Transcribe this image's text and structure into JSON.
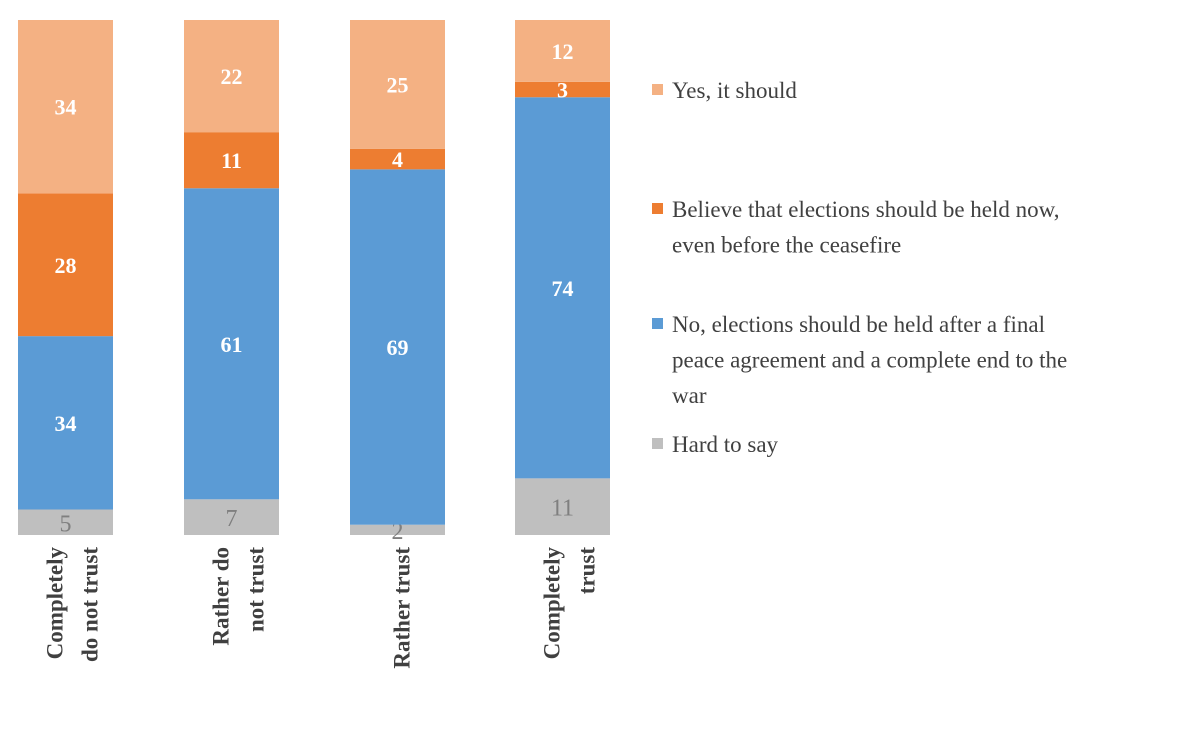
{
  "chart_data": {
    "type": "bar",
    "stacked": true,
    "orientation": "vertical",
    "categories": [
      [
        "Completely",
        "do not trust"
      ],
      [
        "Rather do",
        "not trust"
      ],
      [
        "Rather trust"
      ],
      [
        "Completely",
        "trust"
      ]
    ],
    "series": [
      {
        "name": "Hard to say",
        "color": "#BFBFBF",
        "values": [
          5,
          7,
          2,
          11
        ]
      },
      {
        "name": "No, elections should be held after a final peace agreement and a complete end to the war",
        "legend_lines": [
          "No, elections should be held after a final",
          "peace agreement and a complete end to the",
          "war"
        ],
        "color": "#5B9BD5",
        "values": [
          34,
          61,
          69,
          74
        ]
      },
      {
        "name": "Believe that elections should be held now, even before the ceasefire",
        "legend_lines": [
          "Believe that elections should be held now,",
          "even before the ceasefire"
        ],
        "color": "#ED7D31",
        "values": [
          28,
          11,
          4,
          3
        ]
      },
      {
        "name": "Yes, it should",
        "legend_lines": [
          "Yes, it should"
        ],
        "color": "#F4B183",
        "values": [
          34,
          22,
          25,
          12
        ]
      }
    ],
    "legend_order": [
      3,
      2,
      1,
      0
    ],
    "legend_placement": "right",
    "grid": false,
    "data_labels": true,
    "title": "",
    "xlabel": "",
    "ylabel": ""
  }
}
